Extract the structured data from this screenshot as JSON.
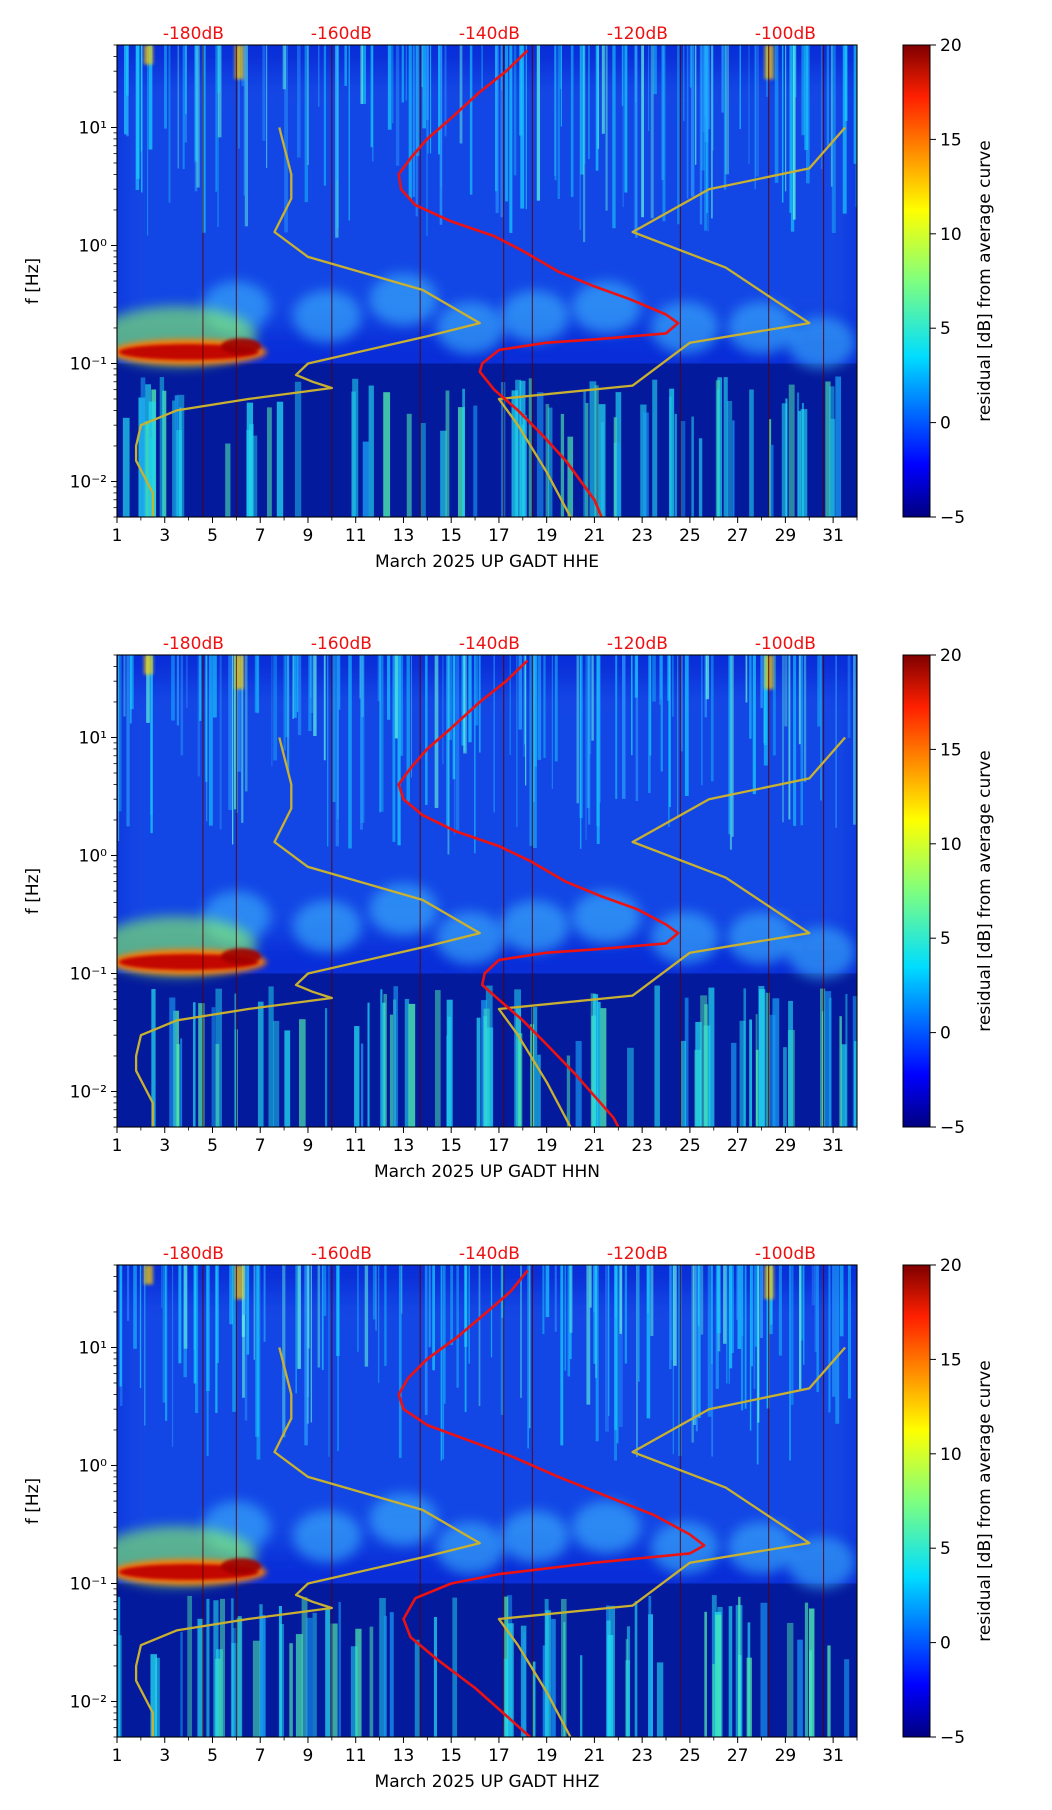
{
  "chart_data": [
    {
      "type": "heatmap",
      "station_label": "March 2025 UP GADT  HHE",
      "ylabel": "f [Hz]",
      "yscale": "log",
      "ylim": [
        0.005,
        50
      ],
      "xlim": [
        1,
        32
      ],
      "x_ticks": [
        "1",
        "3",
        "5",
        "7",
        "9",
        "11",
        "13",
        "15",
        "17",
        "19",
        "21",
        "23",
        "25",
        "27",
        "29",
        "31"
      ],
      "y_ticks": [
        {
          "value": 0.01,
          "label": "10⁻²"
        },
        {
          "value": 0.1,
          "label": "10⁻¹"
        },
        {
          "value": 1,
          "label": "10⁰"
        },
        {
          "value": 10,
          "label": "10¹"
        }
      ],
      "top_axis_labels": [
        {
          "x": 4.2,
          "label": "-180dB"
        },
        {
          "x": 10.4,
          "label": "-160dB"
        },
        {
          "x": 16.6,
          "label": "-140dB"
        },
        {
          "x": 22.8,
          "label": "-120dB"
        },
        {
          "x": 29,
          "label": "-100dB"
        }
      ],
      "colorbar": {
        "label": "residual [dB] from average curve",
        "min": -5,
        "max": 20,
        "ticks": [
          "20",
          "15",
          "10",
          "5",
          "0",
          "−5"
        ]
      },
      "series": [
        {
          "name": "noise-model",
          "color": "#c8b030",
          "points": [
            [
              7.8,
              10
            ],
            [
              8.3,
              4
            ],
            [
              8.3,
              2.5
            ],
            [
              7.6,
              1.3
            ],
            [
              9,
              0.8
            ],
            [
              13.8,
              0.42
            ],
            [
              16.2,
              0.22
            ],
            [
              14,
              0.17
            ],
            [
              9,
              0.1
            ],
            [
              8.5,
              0.08
            ],
            [
              9.2,
              0.07
            ],
            [
              10,
              0.062
            ],
            [
              6.5,
              0.05
            ],
            [
              3.5,
              0.04
            ],
            [
              2,
              0.03
            ],
            [
              1.8,
              0.02
            ],
            [
              1.8,
              0.015
            ],
            [
              2.5,
              0.008
            ],
            [
              2.5,
              0.005
            ]
          ]
        },
        {
          "name": "noise-model",
          "color": "#c8b030",
          "points": [
            [
              31.5,
              10
            ],
            [
              30,
              4.5
            ],
            [
              25.8,
              3
            ],
            [
              22.6,
              1.3
            ],
            [
              26.5,
              0.65
            ],
            [
              30,
              0.22
            ],
            [
              25,
              0.15
            ],
            [
              22.6,
              0.065
            ],
            [
              17,
              0.05
            ],
            [
              17.8,
              0.03
            ],
            [
              19,
              0.012
            ],
            [
              20,
              0.005
            ]
          ]
        },
        {
          "name": "average-psd",
          "color": "#ee1111",
          "points": [
            [
              18.2,
              45
            ],
            [
              17.3,
              30
            ],
            [
              16.2,
              20
            ],
            [
              15,
              12
            ],
            [
              14,
              8
            ],
            [
              13.3,
              5.5
            ],
            [
              12.8,
              4
            ],
            [
              12.9,
              3
            ],
            [
              13.5,
              2.2
            ],
            [
              15,
              1.6
            ],
            [
              16.8,
              1.2
            ],
            [
              18,
              0.9
            ],
            [
              19.5,
              0.6
            ],
            [
              21,
              0.45
            ],
            [
              22.5,
              0.35
            ],
            [
              24,
              0.26
            ],
            [
              24.5,
              0.22
            ],
            [
              24,
              0.18
            ],
            [
              21,
              0.16
            ],
            [
              19,
              0.15
            ],
            [
              17,
              0.13
            ],
            [
              16.3,
              0.1
            ],
            [
              16.2,
              0.085
            ],
            [
              16.8,
              0.06
            ],
            [
              17.8,
              0.04
            ],
            [
              18.8,
              0.025
            ],
            [
              19.8,
              0.015
            ],
            [
              21,
              0.007
            ],
            [
              21.3,
              0.005
            ]
          ]
        }
      ]
    },
    {
      "type": "heatmap",
      "station_label": "March 2025 UP GADT  HHN",
      "ylabel": "f [Hz]",
      "yscale": "log",
      "ylim": [
        0.005,
        50
      ],
      "xlim": [
        1,
        32
      ],
      "x_ticks": [
        "1",
        "3",
        "5",
        "7",
        "9",
        "11",
        "13",
        "15",
        "17",
        "19",
        "21",
        "23",
        "25",
        "27",
        "29",
        "31"
      ],
      "y_ticks": [
        {
          "value": 0.01,
          "label": "10⁻²"
        },
        {
          "value": 0.1,
          "label": "10⁻¹"
        },
        {
          "value": 1,
          "label": "10⁰"
        },
        {
          "value": 10,
          "label": "10¹"
        }
      ],
      "top_axis_labels": [
        {
          "x": 4.2,
          "label": "-180dB"
        },
        {
          "x": 10.4,
          "label": "-160dB"
        },
        {
          "x": 16.6,
          "label": "-140dB"
        },
        {
          "x": 22.8,
          "label": "-120dB"
        },
        {
          "x": 29,
          "label": "-100dB"
        }
      ],
      "colorbar": {
        "label": "residual [dB] from average curve",
        "min": -5,
        "max": 20,
        "ticks": [
          "20",
          "15",
          "10",
          "5",
          "0",
          "−5"
        ]
      },
      "series": [
        {
          "name": "noise-model",
          "color": "#c8b030",
          "points": [
            [
              7.8,
              10
            ],
            [
              8.3,
              4
            ],
            [
              8.3,
              2.5
            ],
            [
              7.6,
              1.3
            ],
            [
              9,
              0.8
            ],
            [
              13.8,
              0.42
            ],
            [
              16.2,
              0.22
            ],
            [
              14,
              0.17
            ],
            [
              9,
              0.1
            ],
            [
              8.5,
              0.08
            ],
            [
              9.2,
              0.07
            ],
            [
              10,
              0.062
            ],
            [
              6.5,
              0.05
            ],
            [
              3.5,
              0.04
            ],
            [
              2,
              0.03
            ],
            [
              1.8,
              0.02
            ],
            [
              1.8,
              0.015
            ],
            [
              2.5,
              0.008
            ],
            [
              2.5,
              0.005
            ]
          ]
        },
        {
          "name": "noise-model",
          "color": "#c8b030",
          "points": [
            [
              31.5,
              10
            ],
            [
              30,
              4.5
            ],
            [
              25.8,
              3
            ],
            [
              22.6,
              1.3
            ],
            [
              26.5,
              0.65
            ],
            [
              30,
              0.22
            ],
            [
              25,
              0.15
            ],
            [
              22.6,
              0.065
            ],
            [
              17,
              0.05
            ],
            [
              17.8,
              0.03
            ],
            [
              19,
              0.012
            ],
            [
              20,
              0.005
            ]
          ]
        },
        {
          "name": "average-psd",
          "color": "#ee1111",
          "points": [
            [
              18.2,
              45
            ],
            [
              17.3,
              30
            ],
            [
              16.2,
              20
            ],
            [
              15,
              12
            ],
            [
              14,
              8
            ],
            [
              13.3,
              5.5
            ],
            [
              12.8,
              4
            ],
            [
              13,
              3
            ],
            [
              13.8,
              2.2
            ],
            [
              15.2,
              1.6
            ],
            [
              17,
              1.2
            ],
            [
              18.3,
              0.9
            ],
            [
              19.8,
              0.6
            ],
            [
              21.3,
              0.45
            ],
            [
              22.8,
              0.35
            ],
            [
              24,
              0.26
            ],
            [
              24.5,
              0.22
            ],
            [
              24,
              0.18
            ],
            [
              21,
              0.16
            ],
            [
              19,
              0.15
            ],
            [
              17,
              0.13
            ],
            [
              16.4,
              0.1
            ],
            [
              16.3,
              0.08
            ],
            [
              17,
              0.06
            ],
            [
              18,
              0.04
            ],
            [
              19,
              0.025
            ],
            [
              20.2,
              0.014
            ],
            [
              21.8,
              0.006
            ],
            [
              22,
              0.005
            ]
          ]
        }
      ]
    },
    {
      "type": "heatmap",
      "station_label": "March 2025 UP GADT  HHZ",
      "ylabel": "f [Hz]",
      "yscale": "log",
      "ylim": [
        0.005,
        50
      ],
      "xlim": [
        1,
        32
      ],
      "x_ticks": [
        "1",
        "3",
        "5",
        "7",
        "9",
        "11",
        "13",
        "15",
        "17",
        "19",
        "21",
        "23",
        "25",
        "27",
        "29",
        "31"
      ],
      "y_ticks": [
        {
          "value": 0.01,
          "label": "10⁻²"
        },
        {
          "value": 0.1,
          "label": "10⁻¹"
        },
        {
          "value": 1,
          "label": "10⁰"
        },
        {
          "value": 10,
          "label": "10¹"
        }
      ],
      "top_axis_labels": [
        {
          "x": 4.2,
          "label": "-180dB"
        },
        {
          "x": 10.4,
          "label": "-160dB"
        },
        {
          "x": 16.6,
          "label": "-140dB"
        },
        {
          "x": 22.8,
          "label": "-120dB"
        },
        {
          "x": 29,
          "label": "-100dB"
        }
      ],
      "colorbar": {
        "label": "residual [dB] from average curve",
        "min": -5,
        "max": 20,
        "ticks": [
          "20",
          "15",
          "10",
          "5",
          "0",
          "−5"
        ]
      },
      "series": [
        {
          "name": "noise-model",
          "color": "#c8b030",
          "points": [
            [
              7.8,
              10
            ],
            [
              8.3,
              4
            ],
            [
              8.3,
              2.5
            ],
            [
              7.6,
              1.3
            ],
            [
              9,
              0.8
            ],
            [
              13.8,
              0.42
            ],
            [
              16.2,
              0.22
            ],
            [
              14,
              0.17
            ],
            [
              9,
              0.1
            ],
            [
              8.5,
              0.08
            ],
            [
              9.2,
              0.07
            ],
            [
              10,
              0.062
            ],
            [
              6.5,
              0.05
            ],
            [
              3.5,
              0.04
            ],
            [
              2,
              0.03
            ],
            [
              1.8,
              0.02
            ],
            [
              1.8,
              0.015
            ],
            [
              2.5,
              0.008
            ],
            [
              2.5,
              0.005
            ]
          ]
        },
        {
          "name": "noise-model",
          "color": "#c8b030",
          "points": [
            [
              31.5,
              10
            ],
            [
              30,
              4.5
            ],
            [
              25.8,
              3
            ],
            [
              22.6,
              1.3
            ],
            [
              26.5,
              0.65
            ],
            [
              30,
              0.22
            ],
            [
              25,
              0.15
            ],
            [
              22.6,
              0.065
            ],
            [
              17,
              0.05
            ],
            [
              17.8,
              0.03
            ],
            [
              19,
              0.012
            ],
            [
              20,
              0.005
            ]
          ]
        },
        {
          "name": "average-psd",
          "color": "#ee1111",
          "points": [
            [
              18.2,
              45
            ],
            [
              17.5,
              30
            ],
            [
              16.5,
              20
            ],
            [
              15.2,
              12
            ],
            [
              14,
              8
            ],
            [
              13.2,
              5.5
            ],
            [
              12.8,
              4
            ],
            [
              13,
              3
            ],
            [
              14,
              2.2
            ],
            [
              15.5,
              1.7
            ],
            [
              17.5,
              1.2
            ],
            [
              19.5,
              0.8
            ],
            [
              21.5,
              0.55
            ],
            [
              23.5,
              0.38
            ],
            [
              25,
              0.26
            ],
            [
              25.6,
              0.21
            ],
            [
              25,
              0.18
            ],
            [
              21,
              0.15
            ],
            [
              17,
              0.12
            ],
            [
              15,
              0.1
            ],
            [
              13.5,
              0.075
            ],
            [
              13,
              0.05
            ],
            [
              13.3,
              0.035
            ],
            [
              14.5,
              0.022
            ],
            [
              16,
              0.013
            ],
            [
              17.5,
              0.007
            ],
            [
              18.3,
              0.005
            ]
          ]
        }
      ]
    }
  ]
}
